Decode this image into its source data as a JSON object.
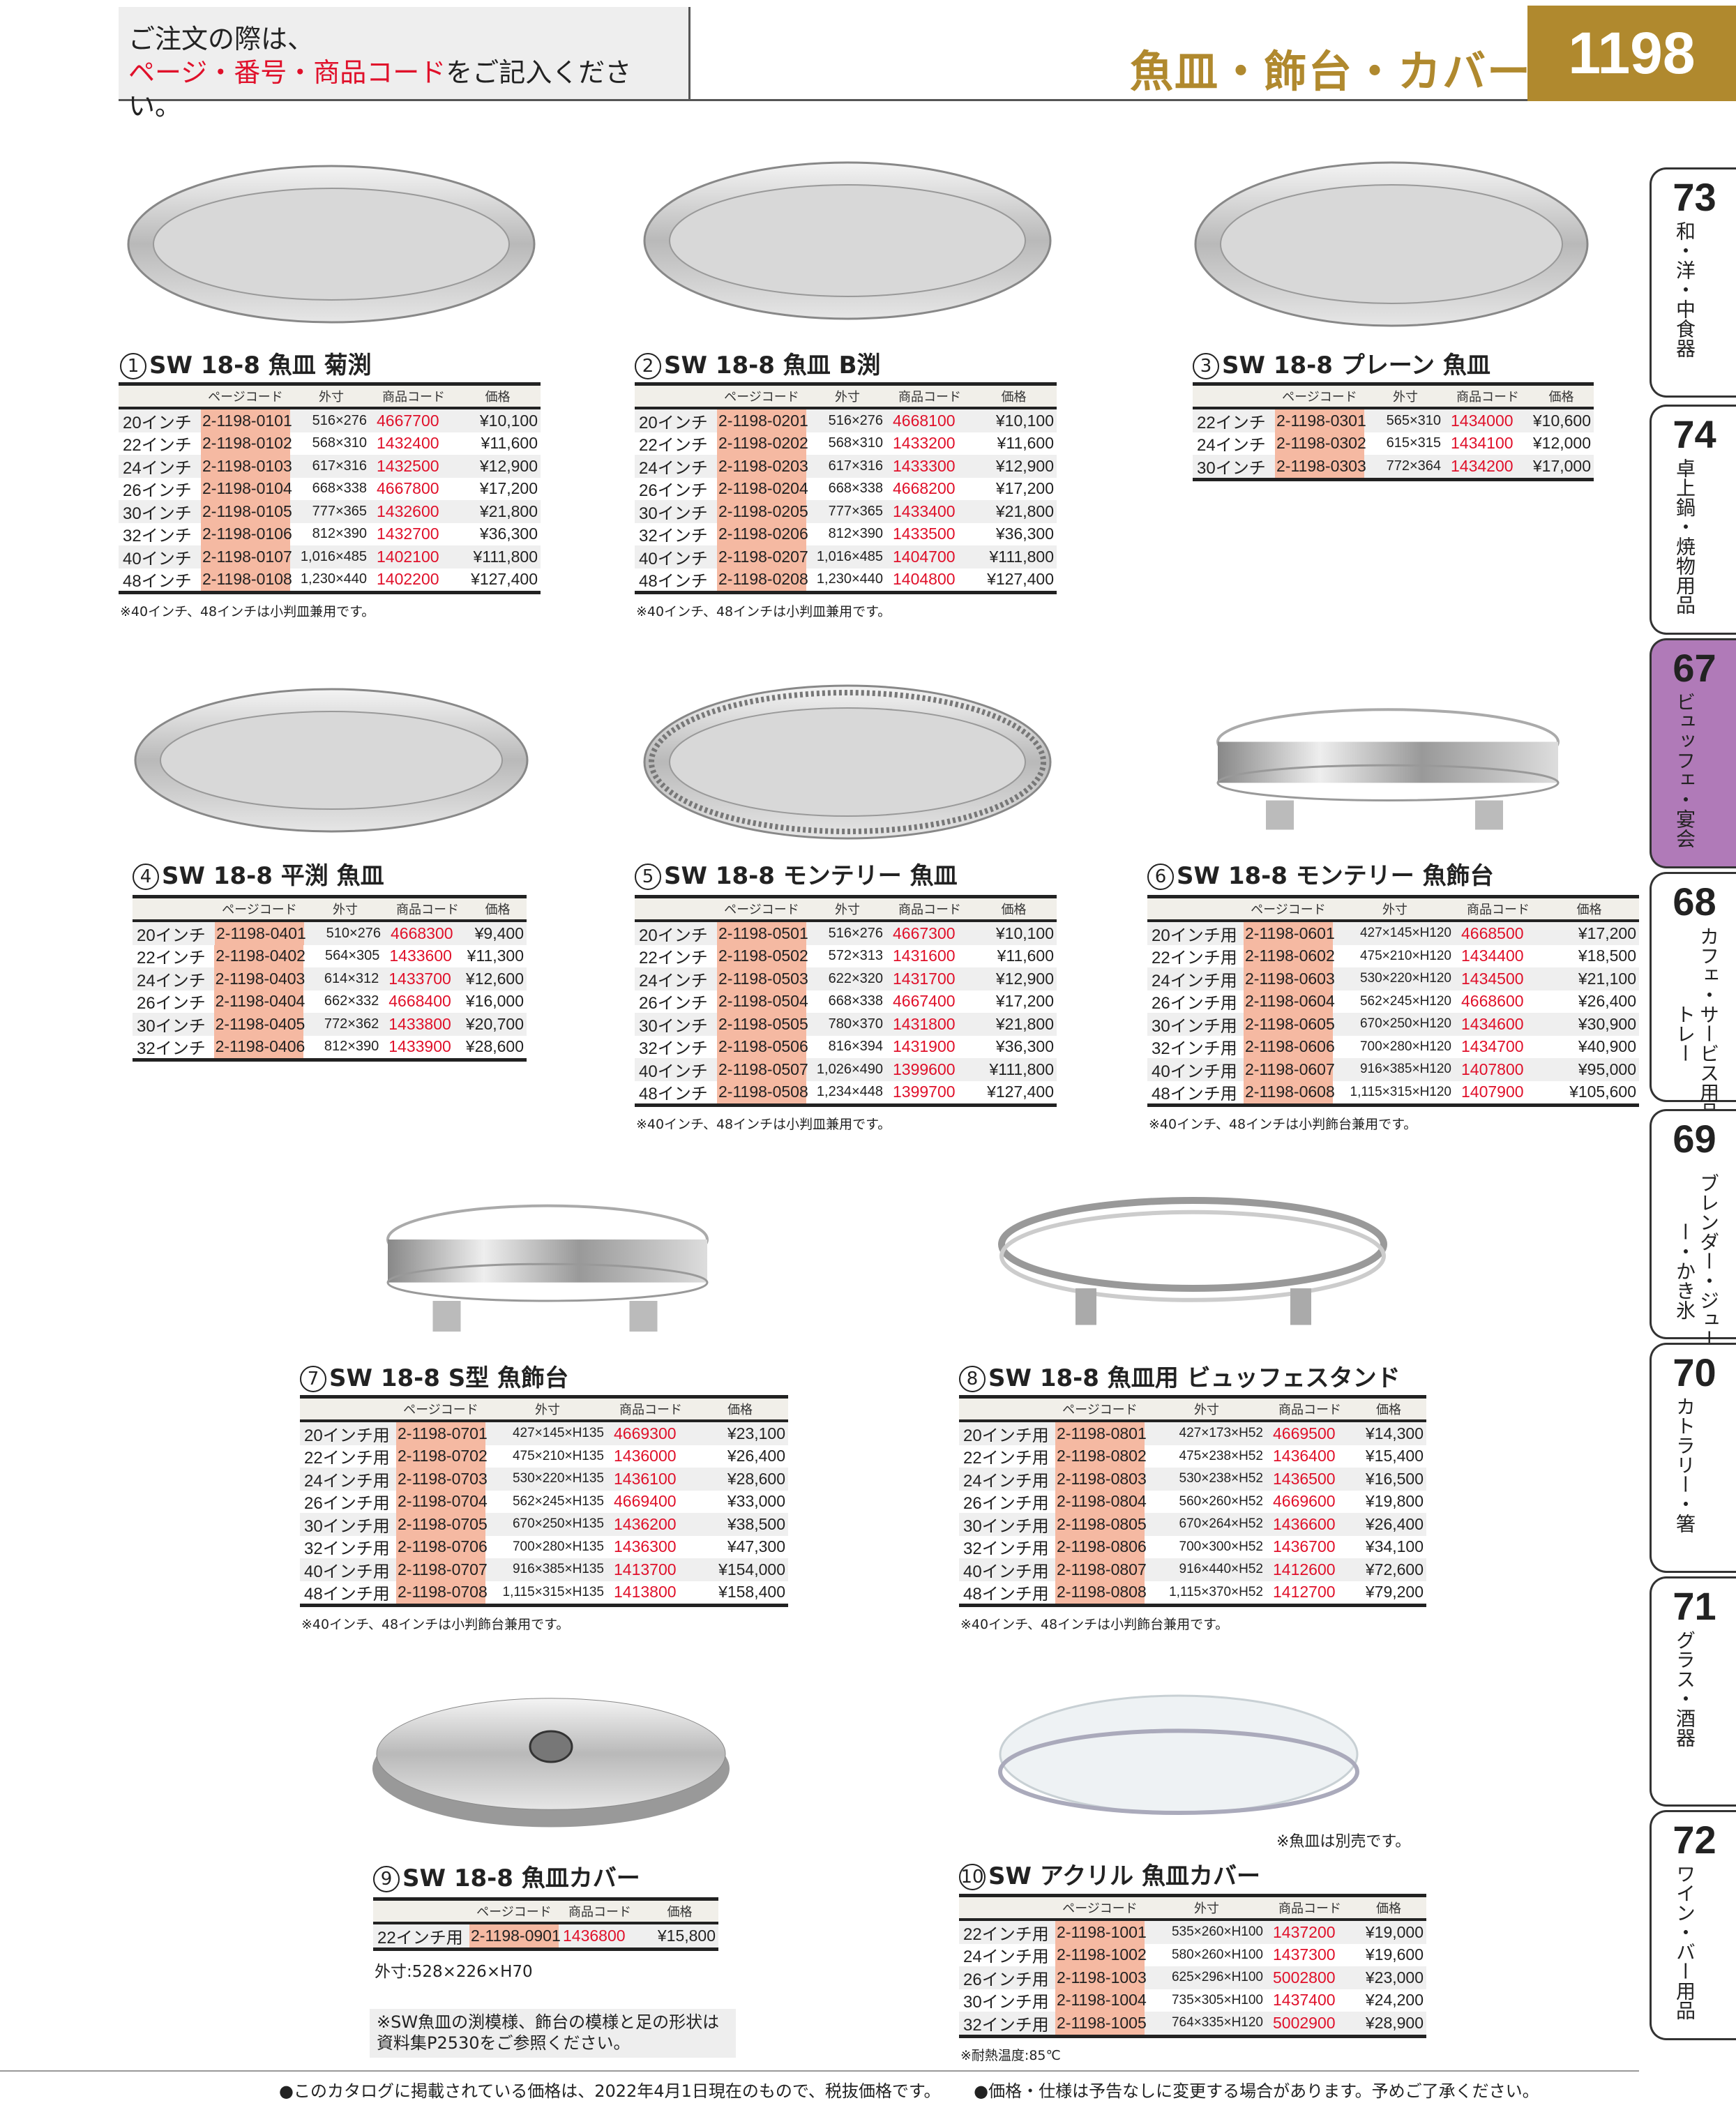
{
  "header": {
    "instruction_line1": "ご注文の際は、",
    "instruction_red": "ページ・番号・商品コード",
    "instruction_rest": "をご記入ください。",
    "title": "魚皿・飾台・カバー",
    "page_number": "1198"
  },
  "colors": {
    "gold": "#b0892e",
    "red": "#e0102a",
    "page_code_bg": "#f5b9a2",
    "active_tab": "#b07ab8"
  },
  "side_tabs": [
    {
      "number": "73",
      "label": "和・洋・中食器",
      "active": false
    },
    {
      "number": "74",
      "label": "卓上鍋・焼物用品",
      "active": false
    },
    {
      "number": "67",
      "label": "ビュッフェ・宴会",
      "active": true
    },
    {
      "number": "68",
      "label": "カフェ・サービス用品・トレー",
      "active": false
    },
    {
      "number": "69",
      "label": "ブレンダー・ジューサー・かき氷",
      "active": false
    },
    {
      "number": "70",
      "label": "カトラリー・箸",
      "active": false
    },
    {
      "number": "71",
      "label": "グラス・酒器",
      "active": false
    },
    {
      "number": "72",
      "label": "ワイン・バー用品",
      "active": false
    }
  ],
  "columns": {
    "page_code": "ページコード",
    "dims": "外寸",
    "product_code": "商品コード",
    "price": "価格"
  },
  "products": [
    {
      "no": "1",
      "name": "SW 18-8 魚皿 菊渕",
      "note": "※40インチ、48インチは小判皿兼用です。",
      "rows": [
        [
          "20インチ",
          "2-1198-0101",
          "516×276",
          "4667700",
          "¥10,100"
        ],
        [
          "22インチ",
          "2-1198-0102",
          "568×310",
          "1432400",
          "¥11,600"
        ],
        [
          "24インチ",
          "2-1198-0103",
          "617×316",
          "1432500",
          "¥12,900"
        ],
        [
          "26インチ",
          "2-1198-0104",
          "668×338",
          "4667800",
          "¥17,200"
        ],
        [
          "30インチ",
          "2-1198-0105",
          "777×365",
          "1432600",
          "¥21,800"
        ],
        [
          "32インチ",
          "2-1198-0106",
          "812×390",
          "1432700",
          "¥36,300"
        ],
        [
          "40インチ",
          "2-1198-0107",
          "1,016×485",
          "1402100",
          "¥111,800"
        ],
        [
          "48インチ",
          "2-1198-0108",
          "1,230×440",
          "1402200",
          "¥127,400"
        ]
      ]
    },
    {
      "no": "2",
      "name": "SW 18-8 魚皿 B渕",
      "note": "※40インチ、48インチは小判皿兼用です。",
      "rows": [
        [
          "20インチ",
          "2-1198-0201",
          "516×276",
          "4668100",
          "¥10,100"
        ],
        [
          "22インチ",
          "2-1198-0202",
          "568×310",
          "1433200",
          "¥11,600"
        ],
        [
          "24インチ",
          "2-1198-0203",
          "617×316",
          "1433300",
          "¥12,900"
        ],
        [
          "26インチ",
          "2-1198-0204",
          "668×338",
          "4668200",
          "¥17,200"
        ],
        [
          "30インチ",
          "2-1198-0205",
          "777×365",
          "1433400",
          "¥21,800"
        ],
        [
          "32インチ",
          "2-1198-0206",
          "812×390",
          "1433500",
          "¥36,300"
        ],
        [
          "40インチ",
          "2-1198-0207",
          "1,016×485",
          "1404700",
          "¥111,800"
        ],
        [
          "48インチ",
          "2-1198-0208",
          "1,230×440",
          "1404800",
          "¥127,400"
        ]
      ]
    },
    {
      "no": "3",
      "name": "SW 18-8 プレーン 魚皿",
      "rows": [
        [
          "22インチ",
          "2-1198-0301",
          "565×310",
          "1434000",
          "¥10,600"
        ],
        [
          "24インチ",
          "2-1198-0302",
          "615×315",
          "1434100",
          "¥12,000"
        ],
        [
          "30インチ",
          "2-1198-0303",
          "772×364",
          "1434200",
          "¥17,000"
        ]
      ]
    },
    {
      "no": "4",
      "name": "SW 18-8 平渕 魚皿",
      "rows": [
        [
          "20インチ",
          "2-1198-0401",
          "510×276",
          "4668300",
          "¥9,400"
        ],
        [
          "22インチ",
          "2-1198-0402",
          "564×305",
          "1433600",
          "¥11,300"
        ],
        [
          "24インチ",
          "2-1198-0403",
          "614×312",
          "1433700",
          "¥12,600"
        ],
        [
          "26インチ",
          "2-1198-0404",
          "662×332",
          "4668400",
          "¥16,000"
        ],
        [
          "30インチ",
          "2-1198-0405",
          "772×362",
          "1433800",
          "¥20,700"
        ],
        [
          "32インチ",
          "2-1198-0406",
          "812×390",
          "1433900",
          "¥28,600"
        ]
      ]
    },
    {
      "no": "5",
      "name": "SW 18-8 モンテリー 魚皿",
      "note": "※40インチ、48インチは小判皿兼用です。",
      "rows": [
        [
          "20インチ",
          "2-1198-0501",
          "516×276",
          "4667300",
          "¥10,100"
        ],
        [
          "22インチ",
          "2-1198-0502",
          "572×313",
          "1431600",
          "¥11,600"
        ],
        [
          "24インチ",
          "2-1198-0503",
          "622×320",
          "1431700",
          "¥12,900"
        ],
        [
          "26インチ",
          "2-1198-0504",
          "668×338",
          "4667400",
          "¥17,200"
        ],
        [
          "30インチ",
          "2-1198-0505",
          "780×370",
          "1431800",
          "¥21,800"
        ],
        [
          "32インチ",
          "2-1198-0506",
          "816×394",
          "1431900",
          "¥36,300"
        ],
        [
          "40インチ",
          "2-1198-0507",
          "1,026×490",
          "1399600",
          "¥111,800"
        ],
        [
          "48インチ",
          "2-1198-0508",
          "1,234×448",
          "1399700",
          "¥127,400"
        ]
      ]
    },
    {
      "no": "6",
      "name": "SW 18-8 モンテリー 魚飾台",
      "note": "※40インチ、48インチは小判飾台兼用です。",
      "rows": [
        [
          "20インチ用",
          "2-1198-0601",
          "427×145×H120",
          "4668500",
          "¥17,200"
        ],
        [
          "22インチ用",
          "2-1198-0602",
          "475×210×H120",
          "1434400",
          "¥18,500"
        ],
        [
          "24インチ用",
          "2-1198-0603",
          "530×220×H120",
          "1434500",
          "¥21,100"
        ],
        [
          "26インチ用",
          "2-1198-0604",
          "562×245×H120",
          "4668600",
          "¥26,400"
        ],
        [
          "30インチ用",
          "2-1198-0605",
          "670×250×H120",
          "1434600",
          "¥30,900"
        ],
        [
          "32インチ用",
          "2-1198-0606",
          "700×280×H120",
          "1434700",
          "¥40,900"
        ],
        [
          "40インチ用",
          "2-1198-0607",
          "916×385×H120",
          "1407800",
          "¥95,000"
        ],
        [
          "48インチ用",
          "2-1198-0608",
          "1,115×315×H120",
          "1407900",
          "¥105,600"
        ]
      ]
    },
    {
      "no": "7",
      "name": "SW 18-8 S型 魚飾台",
      "note": "※40インチ、48インチは小判飾台兼用です。",
      "rows": [
        [
          "20インチ用",
          "2-1198-0701",
          "427×145×H135",
          "4669300",
          "¥23,100"
        ],
        [
          "22インチ用",
          "2-1198-0702",
          "475×210×H135",
          "1436000",
          "¥26,400"
        ],
        [
          "24インチ用",
          "2-1198-0703",
          "530×220×H135",
          "1436100",
          "¥28,600"
        ],
        [
          "26インチ用",
          "2-1198-0704",
          "562×245×H135",
          "4669400",
          "¥33,000"
        ],
        [
          "30インチ用",
          "2-1198-0705",
          "670×250×H135",
          "1436200",
          "¥38,500"
        ],
        [
          "32インチ用",
          "2-1198-0706",
          "700×280×H135",
          "1436300",
          "¥47,300"
        ],
        [
          "40インチ用",
          "2-1198-0707",
          "916×385×H135",
          "1413700",
          "¥154,000"
        ],
        [
          "48インチ用",
          "2-1198-0708",
          "1,115×315×H135",
          "1413800",
          "¥158,400"
        ]
      ]
    },
    {
      "no": "8",
      "name": "SW 18-8 魚皿用 ビュッフェスタンド",
      "note": "※40インチ、48インチは小判飾台兼用です。",
      "rows": [
        [
          "20インチ用",
          "2-1198-0801",
          "427×173×H52",
          "4669500",
          "¥14,300"
        ],
        [
          "22インチ用",
          "2-1198-0802",
          "475×238×H52",
          "1436400",
          "¥15,400"
        ],
        [
          "24インチ用",
          "2-1198-0803",
          "530×238×H52",
          "1436500",
          "¥16,500"
        ],
        [
          "26インチ用",
          "2-1198-0804",
          "560×260×H52",
          "4669600",
          "¥19,800"
        ],
        [
          "30インチ用",
          "2-1198-0805",
          "670×264×H52",
          "1436600",
          "¥26,400"
        ],
        [
          "32インチ用",
          "2-1198-0806",
          "700×300×H52",
          "1436700",
          "¥34,100"
        ],
        [
          "40インチ用",
          "2-1198-0807",
          "916×440×H52",
          "1412600",
          "¥72,600"
        ],
        [
          "48インチ用",
          "2-1198-0808",
          "1,115×370×H52",
          "1412700",
          "¥79,200"
        ]
      ]
    },
    {
      "no": "9",
      "name": "SW 18-8 魚皿カバー",
      "note": "外寸:528×226×H70",
      "rows": [
        [
          "22インチ用",
          "2-1198-0901",
          "",
          "1436800",
          "¥15,800"
        ]
      ]
    },
    {
      "no": "10",
      "name": "SW アクリル 魚皿カバー",
      "note": "※耐熱温度:85℃",
      "image_note": "※魚皿は別売です。",
      "rows": [
        [
          "22インチ用",
          "2-1198-1001",
          "535×260×H100",
          "1437200",
          "¥19,000"
        ],
        [
          "24インチ用",
          "2-1198-1002",
          "580×260×H100",
          "1437300",
          "¥19,600"
        ],
        [
          "26インチ用",
          "2-1198-1003",
          "625×296×H100",
          "5002800",
          "¥23,000"
        ],
        [
          "30インチ用",
          "2-1198-1004",
          "735×305×H100",
          "1437400",
          "¥24,200"
        ],
        [
          "32インチ用",
          "2-1198-1005",
          "764×335×H120",
          "5002900",
          "¥28,900"
        ]
      ]
    }
  ],
  "reference_note": "※SW魚皿の渕模様、飾台の模様と足の形状は資料集P2530をご参照ください。",
  "footer": [
    "●このカタログに掲載されている価格は、2022年4月1日現在のもので、税抜価格です。",
    "●価格・仕様は予告なしに変更する場合があります。予めご了承ください。"
  ]
}
